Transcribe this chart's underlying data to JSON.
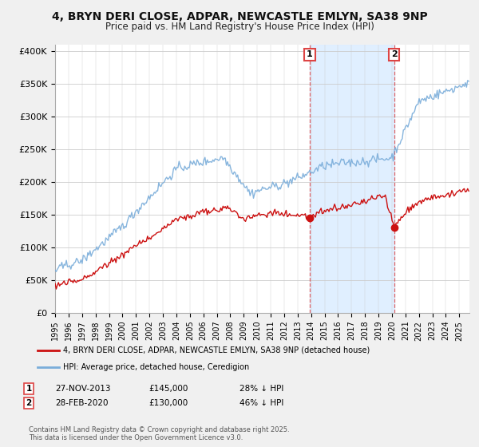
{
  "title_line1": "4, BRYN DERI CLOSE, ADPAR, NEWCASTLE EMLYN, SA38 9NP",
  "title_line2": "Price paid vs. HM Land Registry's House Price Index (HPI)",
  "hpi_color": "#7aadda",
  "price_color": "#cc1111",
  "vline_color": "#dd4444",
  "span_color": "#ddeeff",
  "marker1_x": 2013.9,
  "marker1_y": 145000,
  "marker2_x": 2020.16,
  "marker2_y": 130000,
  "vline1_x": 2013.9,
  "vline2_x": 2020.16,
  "legend_entry1": "4, BRYN DERI CLOSE, ADPAR, NEWCASTLE EMLYN, SA38 9NP (detached house)",
  "legend_entry2": "HPI: Average price, detached house, Ceredigion",
  "sale1_date": "27-NOV-2013",
  "sale1_price": "£145,000",
  "sale1_note": "28% ↓ HPI",
  "sale2_date": "28-FEB-2020",
  "sale2_price": "£130,000",
  "sale2_note": "46% ↓ HPI",
  "footnote": "Contains HM Land Registry data © Crown copyright and database right 2025.\nThis data is licensed under the Open Government Licence v3.0.",
  "ylim": [
    0,
    410000
  ],
  "yticks": [
    0,
    50000,
    100000,
    150000,
    200000,
    250000,
    300000,
    350000,
    400000
  ],
  "xmin": 1995.0,
  "xmax": 2025.75,
  "bg_color": "#f0f0f0"
}
